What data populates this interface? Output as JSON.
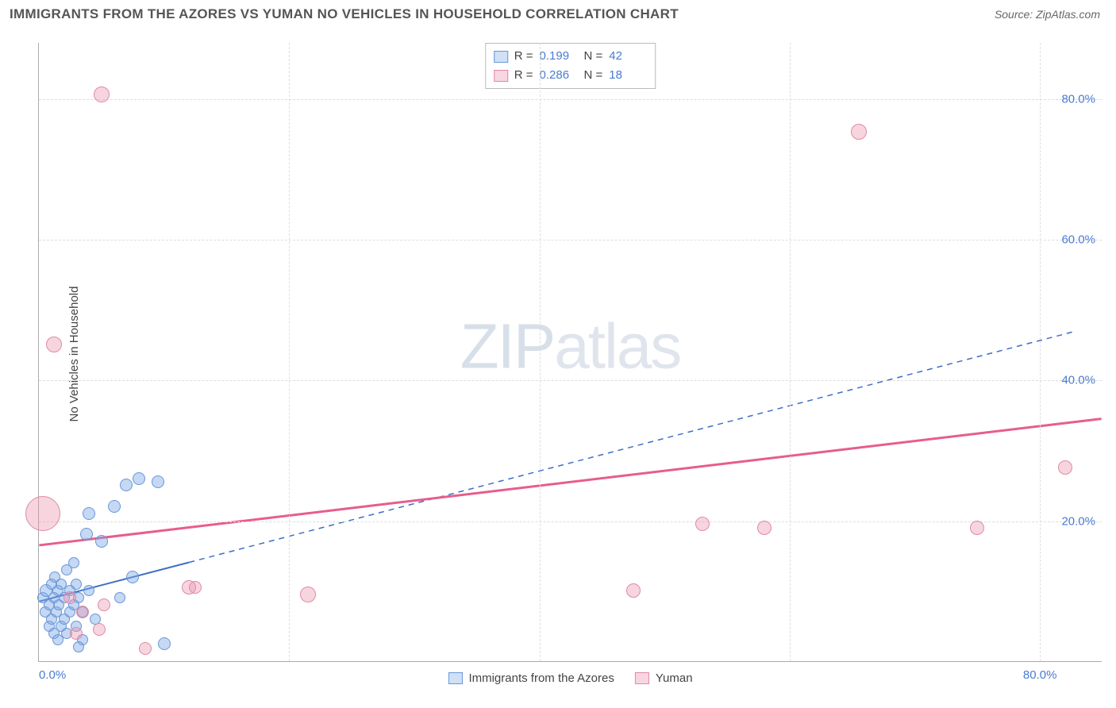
{
  "header": {
    "title": "IMMIGRANTS FROM THE AZORES VS YUMAN NO VEHICLES IN HOUSEHOLD CORRELATION CHART",
    "source_label": "Source:",
    "source_value": "ZipAtlas.com"
  },
  "ylabel": "No Vehicles in Household",
  "watermark": {
    "zip": "ZIP",
    "atlas": "atlas"
  },
  "chart": {
    "type": "scatter",
    "xlim": [
      0,
      85
    ],
    "ylim": [
      0,
      88
    ],
    "yticks": [
      {
        "value": 20,
        "label": "20.0%"
      },
      {
        "value": 40,
        "label": "40.0%"
      },
      {
        "value": 60,
        "label": "60.0%"
      },
      {
        "value": 80,
        "label": "80.0%"
      }
    ],
    "xticks": [
      {
        "value": 0,
        "label": "0.0%"
      },
      {
        "value": 80,
        "label": "80.0%"
      }
    ],
    "xgrid": [
      20,
      40,
      60,
      80
    ],
    "background_color": "#ffffff",
    "grid_color": "#dddddd",
    "series": [
      {
        "name": "Immigrants from the Azores",
        "color_fill": "rgba(126,168,230,0.45)",
        "color_stroke": "#6a96d6",
        "legend_fill": "#cfe0f7",
        "legend_stroke": "#6a96d6",
        "R": "0.199",
        "N": "42",
        "trend": {
          "x1": 0,
          "y1": 8.5,
          "x2": 83,
          "y2": 47,
          "solid_until_x": 12,
          "stroke": "#3e6fc4",
          "width": 2
        },
        "points": [
          {
            "x": 0.3,
            "y": 9,
            "r": 7
          },
          {
            "x": 0.5,
            "y": 7,
            "r": 7
          },
          {
            "x": 0.6,
            "y": 10,
            "r": 8
          },
          {
            "x": 0.8,
            "y": 5,
            "r": 7
          },
          {
            "x": 0.8,
            "y": 8,
            "r": 7
          },
          {
            "x": 1.0,
            "y": 11,
            "r": 7
          },
          {
            "x": 1.0,
            "y": 6,
            "r": 7
          },
          {
            "x": 1.2,
            "y": 4,
            "r": 7
          },
          {
            "x": 1.2,
            "y": 9,
            "r": 7
          },
          {
            "x": 1.3,
            "y": 12,
            "r": 7
          },
          {
            "x": 1.4,
            "y": 7,
            "r": 7
          },
          {
            "x": 1.5,
            "y": 3,
            "r": 7
          },
          {
            "x": 1.5,
            "y": 10,
            "r": 7
          },
          {
            "x": 1.6,
            "y": 8,
            "r": 7
          },
          {
            "x": 1.8,
            "y": 5,
            "r": 7
          },
          {
            "x": 1.8,
            "y": 11,
            "r": 7
          },
          {
            "x": 2.0,
            "y": 6,
            "r": 7
          },
          {
            "x": 2.0,
            "y": 9,
            "r": 7
          },
          {
            "x": 2.2,
            "y": 4,
            "r": 7
          },
          {
            "x": 2.2,
            "y": 13,
            "r": 7
          },
          {
            "x": 2.5,
            "y": 7,
            "r": 7
          },
          {
            "x": 2.5,
            "y": 10,
            "r": 7
          },
          {
            "x": 2.8,
            "y": 8,
            "r": 7
          },
          {
            "x": 3.0,
            "y": 5,
            "r": 7
          },
          {
            "x": 3.0,
            "y": 11,
            "r": 7
          },
          {
            "x": 3.2,
            "y": 9,
            "r": 7
          },
          {
            "x": 3.5,
            "y": 3,
            "r": 7
          },
          {
            "x": 3.5,
            "y": 7,
            "r": 7
          },
          {
            "x": 3.8,
            "y": 18,
            "r": 8
          },
          {
            "x": 4.0,
            "y": 10,
            "r": 7
          },
          {
            "x": 4.0,
            "y": 21,
            "r": 8
          },
          {
            "x": 4.5,
            "y": 6,
            "r": 7
          },
          {
            "x": 5.0,
            "y": 17,
            "r": 8
          },
          {
            "x": 6.0,
            "y": 22,
            "r": 8
          },
          {
            "x": 6.5,
            "y": 9,
            "r": 7
          },
          {
            "x": 7.0,
            "y": 25,
            "r": 8
          },
          {
            "x": 7.5,
            "y": 12,
            "r": 8
          },
          {
            "x": 8.0,
            "y": 26,
            "r": 8
          },
          {
            "x": 9.5,
            "y": 25.5,
            "r": 8
          },
          {
            "x": 3.2,
            "y": 2,
            "r": 7
          },
          {
            "x": 10.0,
            "y": 2.5,
            "r": 8
          },
          {
            "x": 2.8,
            "y": 14,
            "r": 7
          }
        ]
      },
      {
        "name": "Yuman",
        "color_fill": "rgba(236,150,175,0.40)",
        "color_stroke": "#e089a4",
        "legend_fill": "#f7d6e0",
        "legend_stroke": "#e089a4",
        "R": "0.286",
        "N": "18",
        "trend": {
          "x1": 0,
          "y1": 16.5,
          "x2": 85,
          "y2": 34.5,
          "stroke": "#e75d8c",
          "width": 3
        },
        "points": [
          {
            "x": 0.3,
            "y": 21,
            "r": 22
          },
          {
            "x": 1.2,
            "y": 45,
            "r": 10
          },
          {
            "x": 5.0,
            "y": 80.5,
            "r": 10
          },
          {
            "x": 2.5,
            "y": 9,
            "r": 8
          },
          {
            "x": 3.0,
            "y": 4,
            "r": 8
          },
          {
            "x": 3.5,
            "y": 7,
            "r": 8
          },
          {
            "x": 4.8,
            "y": 4.5,
            "r": 8
          },
          {
            "x": 5.2,
            "y": 8,
            "r": 8
          },
          {
            "x": 8.5,
            "y": 1.8,
            "r": 8
          },
          {
            "x": 12.0,
            "y": 10.5,
            "r": 9
          },
          {
            "x": 12.5,
            "y": 10.5,
            "r": 8
          },
          {
            "x": 21.5,
            "y": 9.5,
            "r": 10
          },
          {
            "x": 47.5,
            "y": 10,
            "r": 9
          },
          {
            "x": 53.0,
            "y": 19.5,
            "r": 9
          },
          {
            "x": 58.0,
            "y": 19,
            "r": 9
          },
          {
            "x": 65.5,
            "y": 75.3,
            "r": 10
          },
          {
            "x": 75.0,
            "y": 19,
            "r": 9
          },
          {
            "x": 82.0,
            "y": 27.5,
            "r": 9
          }
        ]
      }
    ]
  },
  "legend_bottom": [
    {
      "label": "Immigrants from the Azores",
      "fill": "#cfe0f7",
      "stroke": "#6a96d6"
    },
    {
      "label": "Yuman",
      "fill": "#f7d6e0",
      "stroke": "#e089a4"
    }
  ]
}
